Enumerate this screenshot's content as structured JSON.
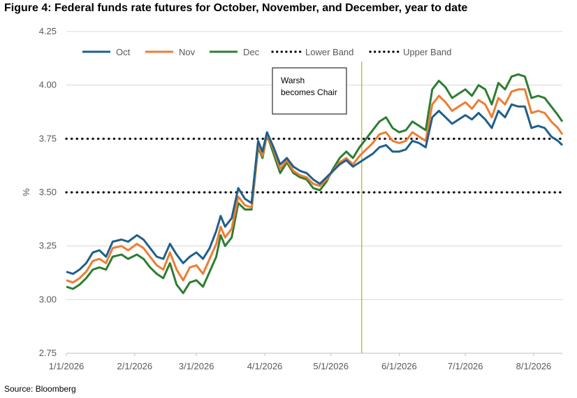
{
  "title": "Figure 4: Federal funds rate futures for October, November, and December, year to date",
  "source": "Source: Bloomberg",
  "chart_data": {
    "type": "line",
    "ylabel": "%",
    "xlabel": "",
    "ylim": [
      2.75,
      4.25
    ],
    "y_ticks": [
      "2.75",
      "3.00",
      "3.25",
      "3.50",
      "3.75",
      "4.00",
      "4.25"
    ],
    "x_ticks": [
      "1/1/2026",
      "2/1/2026",
      "3/1/2026",
      "4/1/2026",
      "5/1/2026",
      "6/1/2026",
      "7/1/2026",
      "8/1/2026"
    ],
    "x_range": [
      "2026-01-01",
      "2026-08-14"
    ],
    "grid": "horizontal",
    "legend_position": "top",
    "series": [
      {
        "name": "Oct",
        "color": "#1f5f8b",
        "style": "solid",
        "points": [
          [
            "2026-01-01",
            3.13
          ],
          [
            "2026-01-04",
            3.12
          ],
          [
            "2026-01-07",
            3.14
          ],
          [
            "2026-01-10",
            3.17
          ],
          [
            "2026-01-13",
            3.22
          ],
          [
            "2026-01-16",
            3.23
          ],
          [
            "2026-01-19",
            3.2
          ],
          [
            "2026-01-22",
            3.27
          ],
          [
            "2026-01-26",
            3.28
          ],
          [
            "2026-01-29",
            3.27
          ],
          [
            "2026-02-02",
            3.3
          ],
          [
            "2026-02-05",
            3.28
          ],
          [
            "2026-02-08",
            3.24
          ],
          [
            "2026-02-11",
            3.2
          ],
          [
            "2026-02-14",
            3.19
          ],
          [
            "2026-02-17",
            3.26
          ],
          [
            "2026-02-20",
            3.21
          ],
          [
            "2026-02-23",
            3.17
          ],
          [
            "2026-02-26",
            3.2
          ],
          [
            "2026-03-01",
            3.22
          ],
          [
            "2026-03-04",
            3.19
          ],
          [
            "2026-03-07",
            3.24
          ],
          [
            "2026-03-10",
            3.32
          ],
          [
            "2026-03-12",
            3.39
          ],
          [
            "2026-03-14",
            3.34
          ],
          [
            "2026-03-17",
            3.38
          ],
          [
            "2026-03-20",
            3.52
          ],
          [
            "2026-03-23",
            3.47
          ],
          [
            "2026-03-26",
            3.45
          ],
          [
            "2026-03-29",
            3.74
          ],
          [
            "2026-03-31",
            3.69
          ],
          [
            "2026-04-02",
            3.78
          ],
          [
            "2026-04-05",
            3.71
          ],
          [
            "2026-04-08",
            3.63
          ],
          [
            "2026-04-11",
            3.66
          ],
          [
            "2026-04-14",
            3.62
          ],
          [
            "2026-04-17",
            3.6
          ],
          [
            "2026-04-20",
            3.59
          ],
          [
            "2026-04-23",
            3.56
          ],
          [
            "2026-04-26",
            3.54
          ],
          [
            "2026-04-29",
            3.57
          ],
          [
            "2026-05-02",
            3.6
          ],
          [
            "2026-05-05",
            3.63
          ],
          [
            "2026-05-08",
            3.65
          ],
          [
            "2026-05-11",
            3.62
          ],
          [
            "2026-05-14",
            3.64
          ],
          [
            "2026-05-17",
            3.66
          ],
          [
            "2026-05-20",
            3.68
          ],
          [
            "2026-05-23",
            3.71
          ],
          [
            "2026-05-26",
            3.72
          ],
          [
            "2026-05-29",
            3.69
          ],
          [
            "2026-06-01",
            3.69
          ],
          [
            "2026-06-04",
            3.7
          ],
          [
            "2026-06-07",
            3.74
          ],
          [
            "2026-06-10",
            3.73
          ],
          [
            "2026-06-13",
            3.71
          ],
          [
            "2026-06-16",
            3.85
          ],
          [
            "2026-06-19",
            3.88
          ],
          [
            "2026-06-22",
            3.85
          ],
          [
            "2026-06-25",
            3.82
          ],
          [
            "2026-06-28",
            3.84
          ],
          [
            "2026-07-01",
            3.86
          ],
          [
            "2026-07-04",
            3.84
          ],
          [
            "2026-07-07",
            3.87
          ],
          [
            "2026-07-10",
            3.84
          ],
          [
            "2026-07-13",
            3.8
          ],
          [
            "2026-07-16",
            3.88
          ],
          [
            "2026-07-19",
            3.85
          ],
          [
            "2026-07-22",
            3.91
          ],
          [
            "2026-07-25",
            3.9
          ],
          [
            "2026-07-28",
            3.9
          ],
          [
            "2026-07-31",
            3.8
          ],
          [
            "2026-08-03",
            3.81
          ],
          [
            "2026-08-06",
            3.8
          ],
          [
            "2026-08-09",
            3.76
          ],
          [
            "2026-08-12",
            3.74
          ],
          [
            "2026-08-14",
            3.72
          ]
        ]
      },
      {
        "name": "Nov",
        "color": "#ed7d31",
        "style": "solid",
        "points": [
          [
            "2026-01-01",
            3.09
          ],
          [
            "2026-01-04",
            3.08
          ],
          [
            "2026-01-07",
            3.1
          ],
          [
            "2026-01-10",
            3.13
          ],
          [
            "2026-01-13",
            3.18
          ],
          [
            "2026-01-16",
            3.19
          ],
          [
            "2026-01-19",
            3.17
          ],
          [
            "2026-01-22",
            3.24
          ],
          [
            "2026-01-26",
            3.25
          ],
          [
            "2026-01-29",
            3.23
          ],
          [
            "2026-02-02",
            3.26
          ],
          [
            "2026-02-05",
            3.24
          ],
          [
            "2026-02-08",
            3.2
          ],
          [
            "2026-02-11",
            3.16
          ],
          [
            "2026-02-14",
            3.14
          ],
          [
            "2026-02-17",
            3.22
          ],
          [
            "2026-02-20",
            3.14
          ],
          [
            "2026-02-23",
            3.09
          ],
          [
            "2026-02-26",
            3.15
          ],
          [
            "2026-03-01",
            3.16
          ],
          [
            "2026-03-04",
            3.12
          ],
          [
            "2026-03-07",
            3.19
          ],
          [
            "2026-03-10",
            3.26
          ],
          [
            "2026-03-12",
            3.34
          ],
          [
            "2026-03-14",
            3.29
          ],
          [
            "2026-03-17",
            3.33
          ],
          [
            "2026-03-20",
            3.48
          ],
          [
            "2026-03-23",
            3.44
          ],
          [
            "2026-03-26",
            3.43
          ],
          [
            "2026-03-29",
            3.72
          ],
          [
            "2026-03-31",
            3.67
          ],
          [
            "2026-04-02",
            3.77
          ],
          [
            "2026-04-05",
            3.7
          ],
          [
            "2026-04-08",
            3.61
          ],
          [
            "2026-04-11",
            3.65
          ],
          [
            "2026-04-14",
            3.6
          ],
          [
            "2026-04-17",
            3.58
          ],
          [
            "2026-04-20",
            3.57
          ],
          [
            "2026-04-23",
            3.54
          ],
          [
            "2026-04-26",
            3.53
          ],
          [
            "2026-04-29",
            3.56
          ],
          [
            "2026-05-02",
            3.6
          ],
          [
            "2026-05-05",
            3.64
          ],
          [
            "2026-05-08",
            3.66
          ],
          [
            "2026-05-11",
            3.63
          ],
          [
            "2026-05-14",
            3.67
          ],
          [
            "2026-05-17",
            3.7
          ],
          [
            "2026-05-20",
            3.73
          ],
          [
            "2026-05-23",
            3.77
          ],
          [
            "2026-05-26",
            3.78
          ],
          [
            "2026-05-29",
            3.74
          ],
          [
            "2026-06-01",
            3.73
          ],
          [
            "2026-06-04",
            3.74
          ],
          [
            "2026-06-07",
            3.78
          ],
          [
            "2026-06-10",
            3.76
          ],
          [
            "2026-06-13",
            3.74
          ],
          [
            "2026-06-16",
            3.91
          ],
          [
            "2026-06-19",
            3.95
          ],
          [
            "2026-06-22",
            3.92
          ],
          [
            "2026-06-25",
            3.88
          ],
          [
            "2026-06-28",
            3.9
          ],
          [
            "2026-07-01",
            3.92
          ],
          [
            "2026-07-04",
            3.89
          ],
          [
            "2026-07-07",
            3.93
          ],
          [
            "2026-07-10",
            3.91
          ],
          [
            "2026-07-13",
            3.85
          ],
          [
            "2026-07-16",
            3.94
          ],
          [
            "2026-07-19",
            3.91
          ],
          [
            "2026-07-22",
            3.97
          ],
          [
            "2026-07-25",
            3.98
          ],
          [
            "2026-07-28",
            3.98
          ],
          [
            "2026-07-31",
            3.87
          ],
          [
            "2026-08-03",
            3.88
          ],
          [
            "2026-08-06",
            3.87
          ],
          [
            "2026-08-09",
            3.83
          ],
          [
            "2026-08-12",
            3.8
          ],
          [
            "2026-08-14",
            3.77
          ]
        ]
      },
      {
        "name": "Dec",
        "color": "#2e7d32",
        "style": "solid",
        "points": [
          [
            "2026-01-01",
            3.06
          ],
          [
            "2026-01-04",
            3.05
          ],
          [
            "2026-01-07",
            3.07
          ],
          [
            "2026-01-10",
            3.1
          ],
          [
            "2026-01-13",
            3.14
          ],
          [
            "2026-01-16",
            3.15
          ],
          [
            "2026-01-19",
            3.14
          ],
          [
            "2026-01-22",
            3.2
          ],
          [
            "2026-01-26",
            3.21
          ],
          [
            "2026-01-29",
            3.19
          ],
          [
            "2026-02-02",
            3.21
          ],
          [
            "2026-02-05",
            3.19
          ],
          [
            "2026-02-08",
            3.15
          ],
          [
            "2026-02-11",
            3.12
          ],
          [
            "2026-02-14",
            3.1
          ],
          [
            "2026-02-17",
            3.17
          ],
          [
            "2026-02-20",
            3.07
          ],
          [
            "2026-02-23",
            3.03
          ],
          [
            "2026-02-26",
            3.08
          ],
          [
            "2026-03-01",
            3.09
          ],
          [
            "2026-03-04",
            3.06
          ],
          [
            "2026-03-07",
            3.13
          ],
          [
            "2026-03-10",
            3.2
          ],
          [
            "2026-03-12",
            3.3
          ],
          [
            "2026-03-14",
            3.25
          ],
          [
            "2026-03-17",
            3.29
          ],
          [
            "2026-03-20",
            3.45
          ],
          [
            "2026-03-23",
            3.42
          ],
          [
            "2026-03-26",
            3.42
          ],
          [
            "2026-03-29",
            3.71
          ],
          [
            "2026-03-31",
            3.66
          ],
          [
            "2026-04-02",
            3.77
          ],
          [
            "2026-04-05",
            3.68
          ],
          [
            "2026-04-08",
            3.59
          ],
          [
            "2026-04-11",
            3.64
          ],
          [
            "2026-04-14",
            3.59
          ],
          [
            "2026-04-17",
            3.57
          ],
          [
            "2026-04-20",
            3.56
          ],
          [
            "2026-04-23",
            3.52
          ],
          [
            "2026-04-26",
            3.51
          ],
          [
            "2026-04-29",
            3.55
          ],
          [
            "2026-05-02",
            3.61
          ],
          [
            "2026-05-05",
            3.66
          ],
          [
            "2026-05-08",
            3.69
          ],
          [
            "2026-05-11",
            3.66
          ],
          [
            "2026-05-14",
            3.71
          ],
          [
            "2026-05-17",
            3.75
          ],
          [
            "2026-05-20",
            3.79
          ],
          [
            "2026-05-23",
            3.83
          ],
          [
            "2026-05-26",
            3.85
          ],
          [
            "2026-05-29",
            3.8
          ],
          [
            "2026-06-01",
            3.78
          ],
          [
            "2026-06-04",
            3.79
          ],
          [
            "2026-06-07",
            3.83
          ],
          [
            "2026-06-10",
            3.81
          ],
          [
            "2026-06-13",
            3.79
          ],
          [
            "2026-06-16",
            3.98
          ],
          [
            "2026-06-19",
            4.02
          ],
          [
            "2026-06-22",
            3.99
          ],
          [
            "2026-06-25",
            3.94
          ],
          [
            "2026-06-28",
            3.96
          ],
          [
            "2026-07-01",
            3.98
          ],
          [
            "2026-07-04",
            3.95
          ],
          [
            "2026-07-07",
            4.0
          ],
          [
            "2026-07-10",
            3.98
          ],
          [
            "2026-07-13",
            3.91
          ],
          [
            "2026-07-16",
            4.01
          ],
          [
            "2026-07-19",
            3.98
          ],
          [
            "2026-07-22",
            4.04
          ],
          [
            "2026-07-25",
            4.05
          ],
          [
            "2026-07-28",
            4.04
          ],
          [
            "2026-07-31",
            3.94
          ],
          [
            "2026-08-03",
            3.95
          ],
          [
            "2026-08-06",
            3.94
          ],
          [
            "2026-08-09",
            3.9
          ],
          [
            "2026-08-12",
            3.86
          ],
          [
            "2026-08-14",
            3.83
          ]
        ]
      },
      {
        "name": "Lower Band",
        "color": "#000000",
        "style": "dotted",
        "value": 3.5
      },
      {
        "name": "Upper Band",
        "color": "#000000",
        "style": "dotted",
        "value": 3.75
      }
    ],
    "annotations": [
      {
        "text_lines": [
          "Warsh",
          "becomes Chair"
        ],
        "x": "2026-05-15",
        "line_color": "#a89a00"
      }
    ]
  }
}
